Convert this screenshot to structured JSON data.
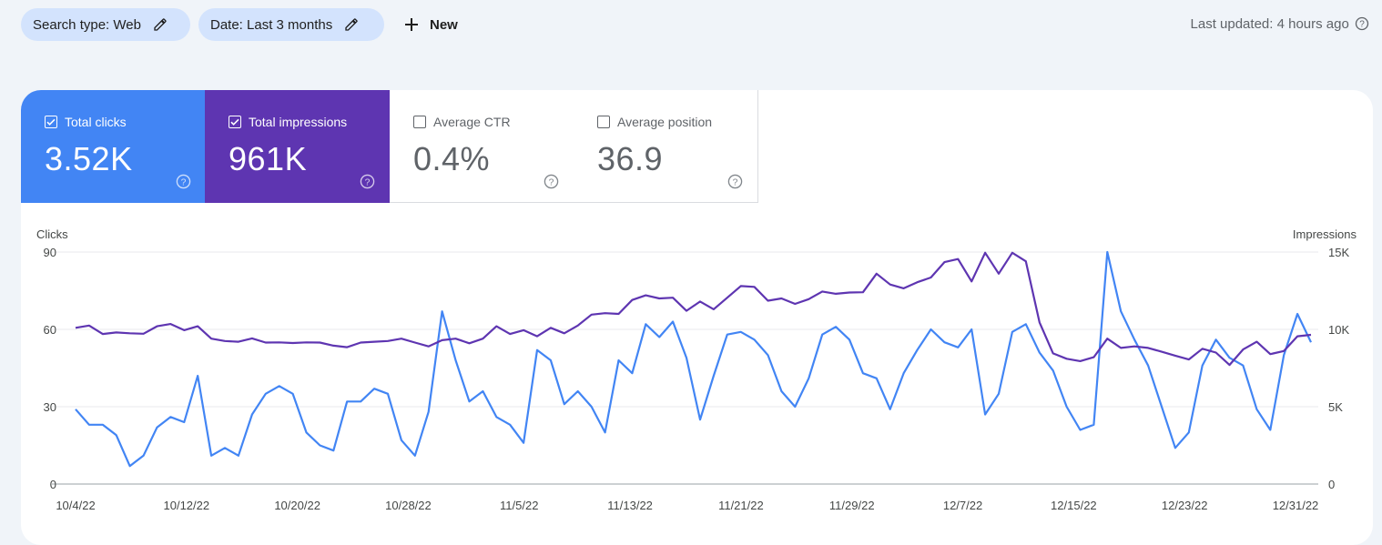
{
  "filters": {
    "search_type": "Search type: Web",
    "date": "Date: Last 3 months",
    "new_label": "New"
  },
  "last_updated": "Last updated: 4 hours ago",
  "metrics": {
    "clicks": {
      "label": "Total clicks",
      "value": "3.52K",
      "checked": true,
      "color": "#4285f4"
    },
    "impressions": {
      "label": "Total impressions",
      "value": "961K",
      "checked": true,
      "color": "#5e35b1"
    },
    "ctr": {
      "label": "Average CTR",
      "value": "0.4%",
      "checked": false
    },
    "position": {
      "label": "Average position",
      "value": "36.9",
      "checked": false
    }
  },
  "chart_data": {
    "type": "line",
    "left_axis_title": "Clicks",
    "right_axis_title": "Impressions",
    "left_ticks": [
      "90",
      "60",
      "30",
      "0"
    ],
    "right_ticks": [
      "15K",
      "10K",
      "5K",
      "0"
    ],
    "ylim_left": [
      0,
      90
    ],
    "ylim_right": [
      0,
      15000
    ],
    "x_labels": [
      "10/4/22",
      "10/12/22",
      "10/20/22",
      "10/28/22",
      "11/5/22",
      "11/13/22",
      "11/21/22",
      "11/29/22",
      "12/7/22",
      "12/15/22",
      "12/23/22",
      "12/31/22"
    ],
    "series": [
      {
        "name": "Clicks",
        "axis": "left",
        "color": "#4285f4",
        "values": [
          29,
          23,
          23,
          19,
          7,
          11,
          22,
          26,
          24,
          42,
          11,
          14,
          11,
          27,
          35,
          38,
          35,
          20,
          15,
          13,
          32,
          32,
          37,
          35,
          17,
          11,
          28,
          67,
          48,
          32,
          36,
          26,
          23,
          16,
          52,
          48,
          31,
          36,
          30,
          20,
          48,
          43,
          62,
          57,
          63,
          49,
          25,
          42,
          58,
          59,
          56,
          50,
          36,
          30,
          41,
          58,
          61,
          56,
          43,
          41,
          29,
          43,
          52,
          60,
          55,
          53,
          60,
          27,
          35,
          59,
          62,
          51,
          44,
          30,
          21,
          23,
          90,
          67,
          56,
          46,
          30,
          14,
          20,
          46,
          56,
          49,
          46,
          29,
          21,
          50,
          66,
          55
        ]
      },
      {
        "name": "Impressions",
        "axis": "right",
        "color": "#5e35b1",
        "values": [
          10100,
          10250,
          9700,
          9800,
          9750,
          9720,
          10200,
          10350,
          9950,
          10200,
          9400,
          9250,
          9200,
          9420,
          9150,
          9160,
          9120,
          9160,
          9150,
          8950,
          8850,
          9150,
          9200,
          9250,
          9400,
          9150,
          8900,
          9300,
          9400,
          9100,
          9400,
          10200,
          9700,
          9950,
          9550,
          10100,
          9750,
          10250,
          10950,
          11050,
          11000,
          11900,
          12200,
          12000,
          12050,
          11200,
          11800,
          11300,
          12050,
          12800,
          12750,
          11850,
          12000,
          11650,
          11950,
          12450,
          12300,
          12380,
          12400,
          13600,
          12900,
          12650,
          13050,
          13350,
          14350,
          14550,
          13100,
          14950,
          13600,
          14950,
          14400,
          10450,
          8450,
          8100,
          7950,
          8200,
          9400,
          8800,
          8900,
          8800,
          8550,
          8300,
          8050,
          8750,
          8500,
          7700,
          8700,
          9200,
          8400,
          8600,
          9550,
          9650
        ]
      }
    ]
  }
}
